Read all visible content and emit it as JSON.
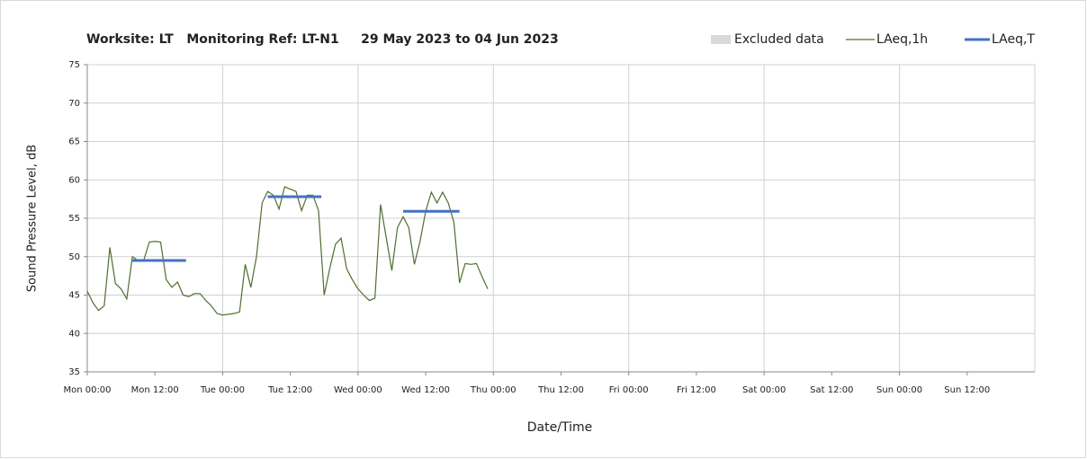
{
  "chart_data": {
    "type": "line",
    "title": "Worksite: LT   Monitoring Ref: LT-N1     29 May 2023 to 04 Jun 2023",
    "xlabel": "Date/Time",
    "ylabel": "Sound Pressure Level, dB",
    "excluded": {
      "name": "Excluded data",
      "color": "#d9d9d9"
    },
    "series": [
      {
        "name": "LAeq,1h",
        "color": "#4f6f2f",
        "x": [
          0,
          1,
          2,
          3,
          4,
          5,
          6,
          7,
          8,
          9,
          10,
          11,
          12,
          13,
          14,
          15,
          16,
          17,
          18,
          19,
          20,
          21,
          22,
          23,
          24,
          25,
          26,
          27,
          28,
          29,
          30,
          31,
          32,
          33,
          34,
          35,
          36,
          37,
          38,
          39,
          40,
          41,
          42,
          43,
          44,
          45,
          46,
          47,
          48,
          49,
          50,
          51,
          52,
          53,
          54,
          55,
          56,
          57,
          58,
          59,
          60,
          61,
          62,
          63,
          64,
          65,
          66,
          67,
          68,
          69,
          70,
          71
        ],
        "values": [
          45.5,
          44,
          43,
          43.6,
          51.2,
          46.5,
          45.8,
          44.5,
          50,
          49.5,
          49.5,
          51.9,
          52,
          51.9,
          47,
          46,
          46.7,
          45,
          44.8,
          45.2,
          45.2,
          44.3,
          43.6,
          42.6,
          42.4,
          42.5,
          42.6,
          42.8,
          49,
          46,
          50,
          57,
          58.5,
          58,
          56.2,
          59.1,
          58.8,
          58.5,
          56,
          58,
          58,
          56,
          45,
          48.5,
          51.6,
          52.4,
          48.4,
          47,
          45.8,
          45,
          44.3,
          44.6,
          56.8,
          52.5,
          48.2,
          53.8,
          55.2,
          53.8,
          49,
          52,
          55.9,
          58.4,
          57,
          58.4,
          57,
          54.5,
          46.6,
          49.1,
          49,
          49.1,
          47.4,
          45.8
        ]
      }
    ],
    "segments_series": {
      "name": "LAeq,T",
      "color": "#4472c4",
      "segments": [
        {
          "x": [
            8,
            17.5
          ],
          "value": 49.5
        },
        {
          "x": [
            32,
            41.5
          ],
          "value": 57.8
        },
        {
          "x": [
            56,
            66
          ],
          "value": 55.9
        }
      ]
    },
    "xlim": [
      0,
      168
    ],
    "xticks": [
      {
        "value": 0,
        "label": "Mon 00:00"
      },
      {
        "value": 12,
        "label": "Mon 12:00"
      },
      {
        "value": 24,
        "label": "Tue 00:00"
      },
      {
        "value": 36,
        "label": "Tue 12:00"
      },
      {
        "value": 48,
        "label": "Wed 00:00"
      },
      {
        "value": 60,
        "label": "Wed 12:00"
      },
      {
        "value": 72,
        "label": "Thu 00:00"
      },
      {
        "value": 84,
        "label": "Thu 12:00"
      },
      {
        "value": 96,
        "label": "Fri 00:00"
      },
      {
        "value": 108,
        "label": "Fri 12:00"
      },
      {
        "value": 120,
        "label": "Sat 00:00"
      },
      {
        "value": 132,
        "label": "Sat 12:00"
      },
      {
        "value": 144,
        "label": "Sun 00:00"
      },
      {
        "value": 156,
        "label": "Sun 12:00"
      }
    ],
    "ylim": [
      35,
      75
    ],
    "yticks": [
      35,
      40,
      45,
      50,
      55,
      60,
      65,
      70,
      75
    ],
    "grid": true
  }
}
